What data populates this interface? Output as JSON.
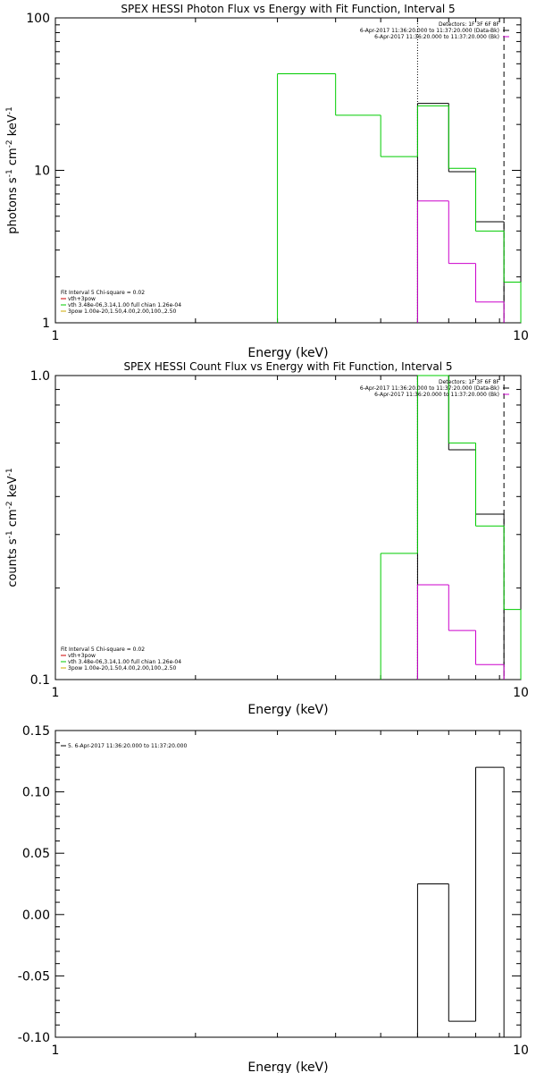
{
  "chart_data": [
    {
      "type": "line",
      "title": "SPEX HESSI Photon Flux vs Energy with Fit Function, Interval 5",
      "xlabel": "Energy (keV)",
      "ylabel_base": "photons s",
      "ylabel_mid": " cm",
      "ylabel_end": " keV",
      "ylabel_sup1": "-1",
      "ylabel_sup2": "-2",
      "ylabel_sup3": "-1",
      "xscale": "log",
      "yscale": "log",
      "xlim": [
        1,
        10
      ],
      "ylim": [
        1,
        100
      ],
      "xticks": [
        {
          "v": 1,
          "label": "1"
        },
        {
          "v": 10,
          "label": "10"
        }
      ],
      "yticks": [
        {
          "v": 1,
          "label": "1"
        },
        {
          "v": 10,
          "label": "10"
        },
        {
          "v": 100,
          "label": "100"
        }
      ],
      "vlines": [
        {
          "x": 6.0,
          "style": "dotted"
        },
        {
          "x": 9.2,
          "style": "dashed"
        }
      ],
      "legend_right": [
        {
          "text": "Detectors: 1F 3F 6F 8F",
          "color": ""
        },
        {
          "text": "6-Apr-2017 11:36:20.000 to 11:37:20.000 (Data-Bk)",
          "color": "#000000"
        },
        {
          "text": "6-Apr-2017 11:36:20.000 to 11:37:20.000 (Bk)",
          "color": "#cc00cc"
        }
      ],
      "legend_left": [
        {
          "text": "Fit Interval 5   Chi-square = 0.02",
          "color": ""
        },
        {
          "text": "vth+3pow",
          "color": "#cc0000"
        },
        {
          "text": "vth 3.48e-06,3.14,1.00  full chian 1.26e-04",
          "color": "#00cc00"
        },
        {
          "text": "3pow 1.00e-20,1.50,4.00,2.00,100.,2.50",
          "color": "#ccaa00"
        }
      ],
      "series": [
        {
          "color": "#000000",
          "steps": [
            {
              "x0": 6.0,
              "x1": 7.0,
              "y": 27.5
            },
            {
              "x0": 7.0,
              "x1": 8.0,
              "y": 9.8
            },
            {
              "x0": 8.0,
              "x1": 9.2,
              "y": 4.6
            }
          ],
          "drop_to_floor": true
        },
        {
          "color": "#00cc00",
          "steps": [
            {
              "x0": 3.0,
              "x1": 4.0,
              "y": 43
            },
            {
              "x0": 4.0,
              "x1": 5.0,
              "y": 23
            },
            {
              "x0": 5.0,
              "x1": 6.0,
              "y": 12.3
            },
            {
              "x0": 6.0,
              "x1": 7.0,
              "y": 26.5
            },
            {
              "x0": 7.0,
              "x1": 8.0,
              "y": 10.3
            },
            {
              "x0": 8.0,
              "x1": 9.2,
              "y": 4.0
            },
            {
              "x0": 9.2,
              "x1": 10.0,
              "y": 1.85
            }
          ],
          "drop_to_floor": true
        },
        {
          "color": "#cc00cc",
          "steps": [
            {
              "x0": 6.0,
              "x1": 7.0,
              "y": 6.3
            },
            {
              "x0": 7.0,
              "x1": 8.0,
              "y": 2.45
            },
            {
              "x0": 8.0,
              "x1": 9.2,
              "y": 1.37
            }
          ],
          "drop_to_floor": true
        }
      ]
    },
    {
      "type": "line",
      "title": "SPEX HESSI Count Flux vs Energy with Fit Function, Interval 5",
      "xlabel": "Energy (keV)",
      "ylabel_base": "counts s",
      "ylabel_mid": " cm",
      "ylabel_end": " keV",
      "ylabel_sup1": "-1",
      "ylabel_sup2": "-2",
      "ylabel_sup3": "-1",
      "xscale": "log",
      "yscale": "log",
      "xlim": [
        1,
        10
      ],
      "ylim": [
        0.1,
        1.0
      ],
      "xticks": [
        {
          "v": 1,
          "label": "1"
        },
        {
          "v": 10,
          "label": "10"
        }
      ],
      "yticks": [
        {
          "v": 0.1,
          "label": "0.1"
        },
        {
          "v": 1.0,
          "label": "1.0"
        }
      ],
      "vlines": [
        {
          "x": 6.0,
          "style": "dotted"
        },
        {
          "x": 9.2,
          "style": "dashed"
        }
      ],
      "legend_right": [
        {
          "text": "Detectors: 1F 3F 6F 8F",
          "color": ""
        },
        {
          "text": "6-Apr-2017 11:36:20.000 to 11:37:20.000 (Data-Bk)",
          "color": "#000000"
        },
        {
          "text": "6-Apr-2017 11:36:20.000 to 11:37:20.000 (Bk)",
          "color": "#cc00cc"
        }
      ],
      "legend_left": [
        {
          "text": "Fit Interval 5   Chi-square = 0.02",
          "color": ""
        },
        {
          "text": "vth+3pow",
          "color": "#cc0000"
        },
        {
          "text": "vth 3.48e-06,3.14,1.00  full chian 1.26e-04",
          "color": "#00cc00"
        },
        {
          "text": "3pow 1.00e-20,1.50,4.00,2.00,100.,2.50",
          "color": "#ccaa00"
        }
      ],
      "series": [
        {
          "color": "#000000",
          "steps": [
            {
              "x0": 6.0,
              "x1": 7.0,
              "y": 1.0
            },
            {
              "x0": 7.0,
              "x1": 8.0,
              "y": 0.57
            },
            {
              "x0": 8.0,
              "x1": 9.2,
              "y": 0.35
            }
          ],
          "drop_to_floor": true
        },
        {
          "color": "#00cc00",
          "steps": [
            {
              "x0": 5.0,
              "x1": 6.0,
              "y": 0.26
            },
            {
              "x0": 6.0,
              "x1": 7.0,
              "y": 1.0
            },
            {
              "x0": 7.0,
              "x1": 8.0,
              "y": 0.6
            },
            {
              "x0": 8.0,
              "x1": 9.2,
              "y": 0.32
            },
            {
              "x0": 9.2,
              "x1": 10.0,
              "y": 0.17
            }
          ],
          "drop_to_floor": true
        },
        {
          "color": "#cc00cc",
          "steps": [
            {
              "x0": 6.0,
              "x1": 7.0,
              "y": 0.205
            },
            {
              "x0": 7.0,
              "x1": 8.0,
              "y": 0.145
            },
            {
              "x0": 8.0,
              "x1": 9.2,
              "y": 0.112
            }
          ],
          "drop_to_floor": true
        }
      ]
    },
    {
      "type": "line",
      "title": "",
      "xlabel": "Energy (keV)",
      "xscale": "log",
      "yscale": "linear",
      "xlim": [
        1,
        10
      ],
      "ylim": [
        -0.1,
        0.15
      ],
      "xticks": [
        {
          "v": 1,
          "label": "1"
        },
        {
          "v": 10,
          "label": "10"
        }
      ],
      "yticks": [
        {
          "v": -0.1,
          "label": "-0.10"
        },
        {
          "v": -0.05,
          "label": "-0.05"
        },
        {
          "v": 0.0,
          "label": "0.00"
        },
        {
          "v": 0.05,
          "label": "0.05"
        },
        {
          "v": 0.1,
          "label": "0.10"
        },
        {
          "v": 0.15,
          "label": "0.15"
        }
      ],
      "vlines": [],
      "legend_right": [],
      "legend_left": [
        {
          "text": "5.  6-Apr-2017 11:36:20.000 to 11:37:20.000",
          "color": "#000000"
        }
      ],
      "series": [
        {
          "color": "#000000",
          "steps": [
            {
              "x0": 6.0,
              "x1": 7.0,
              "y": 0.025
            },
            {
              "x0": 7.0,
              "x1": 8.0,
              "y": -0.087
            },
            {
              "x0": 8.0,
              "x1": 9.2,
              "y": 0.12
            }
          ],
          "drop_to_floor": true
        }
      ]
    }
  ]
}
